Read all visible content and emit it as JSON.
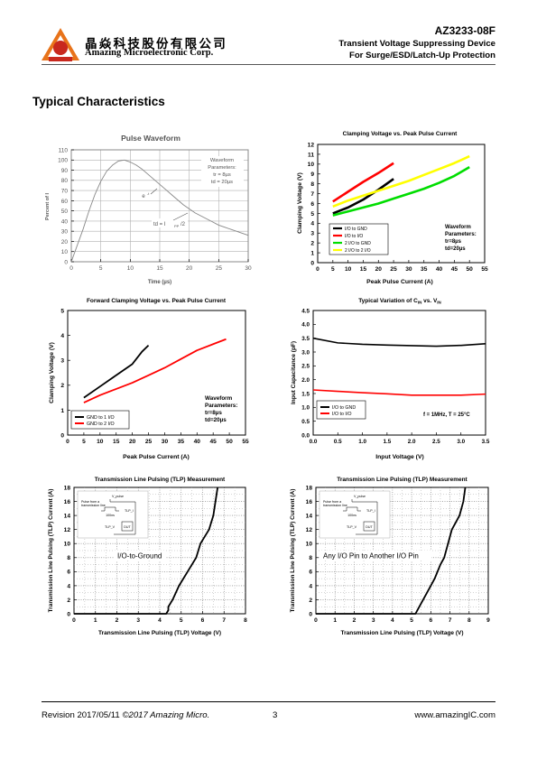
{
  "header": {
    "company_cn": "晶焱科技股份有限公司",
    "company_en": "Amazing Microelectronic Corp.",
    "part_number": "AZ3233-08F",
    "subtitle_1": "Transient  Voltage  Suppressing  Device",
    "subtitle_2": "For  Surge/ESD/Latch-Up  Protection"
  },
  "section_title": "Typical Characteristics",
  "footer": {
    "revision": "Revision 2017/05/11 ",
    "copyright": "©2017 Amazing Micro.",
    "page": "3",
    "url": "www.amazingIC.com"
  },
  "charts": {
    "pulse": {
      "title": "Pulse Waveform",
      "xlabel": "Time (µs)",
      "ylabel": "Percent of I",
      "ylabel_sub": "PP",
      "xticks": [
        "0",
        "5",
        "10",
        "15",
        "20",
        "25",
        "30"
      ],
      "yticks": [
        "0",
        "10",
        "20",
        "30",
        "40",
        "50",
        "60",
        "70",
        "80",
        "90",
        "100",
        "110"
      ],
      "note_1": "Waveform",
      "note_2": "Parameters:",
      "note_3": "tr = 8µs",
      "note_4": "td = 20µs",
      "e_label": "e",
      "e_sup": "-t",
      "td_label": "td = I",
      "td_sub": "PP",
      "td_suffix": "/2"
    },
    "clamp": {
      "title": "Clamping Voltage vs. Peak Pulse Current",
      "xlabel": "Peak Pulse Current (A)",
      "ylabel": "Clamping Voltage (V)",
      "xticks": [
        "0",
        "5",
        "10",
        "15",
        "20",
        "25",
        "30",
        "35",
        "40",
        "45",
        "50",
        "55"
      ],
      "yticks": [
        "0",
        "1",
        "2",
        "3",
        "4",
        "5",
        "6",
        "7",
        "8",
        "9",
        "10",
        "11",
        "12"
      ],
      "legend": [
        "I/O to GND",
        "I/O to I/O",
        "2 I/O to GND",
        "2 I/O to 2 I/O"
      ],
      "note_1": "Waveform",
      "note_2": "Parameters:",
      "note_3": "tr=8µs",
      "note_4": "td=20µs"
    },
    "fwd": {
      "title": "Forward Clamping Voltage vs. Peak Pulse Current",
      "xlabel": "Peak Pulse Current (A)",
      "ylabel": "Clamping Voltage (V)",
      "xticks": [
        "0",
        "5",
        "10",
        "15",
        "20",
        "25",
        "30",
        "35",
        "40",
        "45",
        "50",
        "55"
      ],
      "yticks": [
        "0",
        "1",
        "2",
        "3",
        "4",
        "5"
      ],
      "legend": [
        "GND to 1 I/O",
        "GND to 2 I/O"
      ],
      "note_1": "Waveform",
      "note_2": "Parameters:",
      "note_3": "tr=8µs",
      "note_4": "td=20µs"
    },
    "cap": {
      "title_main": "Typical Variation of C",
      "title_sub1": "IN",
      "title_mid": " vs. V",
      "title_sub2": "IN",
      "xlabel": "Input Voltage (V)",
      "ylabel": "Input Capacitance (pF)",
      "xticks": [
        "0.0",
        "0.5",
        "1.0",
        "1.5",
        "2.0",
        "2.5",
        "3.0",
        "3.5"
      ],
      "yticks": [
        "0.0",
        "0.5",
        "1.0",
        "1.5",
        "2.0",
        "2.5",
        "3.0",
        "3.5",
        "4.0",
        "4.5"
      ],
      "legend": [
        "I/O to GND",
        "I/O to I/O"
      ],
      "note": "f = 1MHz, T = 25°C"
    },
    "tlp1": {
      "title": "Transmission Line Pulsing (TLP) Measurement",
      "xlabel": "Transmission Line Pulsing (TLP) Voltage (V)",
      "ylabel": "Transmission Line Pulsing (TLP) Current (A)",
      "xticks": [
        "0",
        "1",
        "2",
        "3",
        "4",
        "5",
        "6",
        "7",
        "8"
      ],
      "yticks": [
        "0",
        "2",
        "4",
        "6",
        "8",
        "10",
        "12",
        "14",
        "16",
        "18"
      ],
      "label": "I/O-to-Ground",
      "inset_pulse": "Pulse from a",
      "inset_tl": "transmission line",
      "inset_vpulse": "V_pulse",
      "inset_100ns": "100ns",
      "inset_tlp_i": "TLP_I",
      "inset_tlp_v": "TLP_V",
      "inset_dut": "DUT"
    },
    "tlp2": {
      "title": "Transmission Line Pulsing (TLP) Measurement",
      "xlabel": "Transmission Line Pulsing (TLP) Voltage (V)",
      "ylabel": "Transmission Line Pulsing (TLP) Current (A)",
      "xticks": [
        "0",
        "1",
        "2",
        "3",
        "4",
        "5",
        "6",
        "7",
        "8",
        "9"
      ],
      "yticks": [
        "0",
        "2",
        "4",
        "6",
        "8",
        "10",
        "12",
        "14",
        "16",
        "18"
      ],
      "label": "Any I/O Pin to Another I/O Pin",
      "inset_pulse": "Pulse from a",
      "inset_tl": "transmission line",
      "inset_vpulse": "V_pulse",
      "inset_100ns": "100ns",
      "inset_tlp_i": "TLP_I",
      "inset_tlp_v": "TLP_V",
      "inset_dut": "DUT"
    }
  },
  "chart_data": [
    {
      "type": "line",
      "title": "Pulse Waveform",
      "xlabel": "Time (µs)",
      "ylabel": "Percent of IPP",
      "xlim": [
        0,
        30
      ],
      "ylim": [
        0,
        110
      ],
      "series": [
        {
          "x": [
            0,
            1,
            2,
            3,
            4,
            5,
            6,
            7,
            8,
            9,
            10,
            11,
            12,
            13,
            14,
            15,
            16,
            17,
            18,
            19,
            20,
            21,
            22,
            23,
            24,
            25,
            26,
            27,
            28,
            29,
            30
          ],
          "values": [
            0,
            16,
            32,
            50,
            66,
            79,
            89,
            95,
            99,
            100,
            98,
            95,
            91,
            86,
            81,
            76,
            71,
            66,
            61,
            56,
            52,
            48,
            45,
            42,
            39,
            36,
            34,
            32,
            30,
            28,
            26
          ]
        }
      ],
      "color": "#888888"
    },
    {
      "type": "line",
      "title": "Clamping Voltage vs. Peak Pulse Current",
      "xlabel": "Peak Pulse Current (A)",
      "ylabel": "Clamping Voltage (V)",
      "xlim": [
        0,
        55
      ],
      "ylim": [
        0,
        12
      ],
      "series": [
        {
          "name": "I/O to GND",
          "color": "#000000",
          "x": [
            5,
            10,
            15,
            20,
            25
          ],
          "values": [
            5.0,
            5.6,
            6.4,
            7.4,
            8.5
          ]
        },
        {
          "name": "I/O to I/O",
          "color": "#ff0000",
          "x": [
            5,
            10,
            15,
            20,
            25
          ],
          "values": [
            6.2,
            7.2,
            8.2,
            9.1,
            10.1
          ]
        },
        {
          "name": "2 I/O to GND",
          "color": "#00dd00",
          "x": [
            5,
            10,
            15,
            20,
            25,
            30,
            35,
            40,
            45,
            50
          ],
          "values": [
            4.8,
            5.2,
            5.6,
            6.0,
            6.5,
            7.0,
            7.5,
            8.1,
            8.8,
            9.7
          ]
        },
        {
          "name": "2 I/O to 2 I/O",
          "color": "#ffff00",
          "x": [
            5,
            10,
            15,
            20,
            25,
            30,
            35,
            40,
            45,
            50
          ],
          "values": [
            5.7,
            6.3,
            6.8,
            7.3,
            7.8,
            8.3,
            8.9,
            9.5,
            10.1,
            10.8
          ]
        }
      ]
    },
    {
      "type": "line",
      "title": "Forward Clamping Voltage vs. Peak Pulse Current",
      "xlabel": "Peak Pulse Current (A)",
      "ylabel": "Clamping Voltage (V)",
      "xlim": [
        0,
        55
      ],
      "ylim": [
        0,
        5
      ],
      "series": [
        {
          "name": "GND to 1 I/O",
          "color": "#000000",
          "x": [
            5,
            10,
            15,
            20,
            23,
            25
          ],
          "values": [
            1.5,
            1.95,
            2.4,
            2.85,
            3.35,
            3.6
          ]
        },
        {
          "name": "GND to 2 I/O",
          "color": "#ff0000",
          "x": [
            5,
            10,
            15,
            20,
            25,
            30,
            35,
            40,
            45,
            49
          ],
          "values": [
            1.3,
            1.6,
            1.85,
            2.1,
            2.4,
            2.7,
            3.05,
            3.4,
            3.65,
            3.85
          ]
        }
      ]
    },
    {
      "type": "line",
      "title": "Typical Variation of CIN vs. VIN",
      "xlabel": "Input Voltage (V)",
      "ylabel": "Input Capacitance (pF)",
      "xlim": [
        0,
        3.5
      ],
      "ylim": [
        0,
        4.5
      ],
      "series": [
        {
          "name": "I/O to GND",
          "color": "#000000",
          "x": [
            0,
            0.5,
            1.0,
            1.5,
            2.0,
            2.5,
            3.0,
            3.5
          ],
          "values": [
            3.5,
            3.33,
            3.28,
            3.25,
            3.23,
            3.21,
            3.24,
            3.3
          ]
        },
        {
          "name": "I/O to I/O",
          "color": "#ff0000",
          "x": [
            0,
            0.5,
            1.0,
            1.5,
            2.0,
            2.5,
            3.0,
            3.5
          ],
          "values": [
            1.63,
            1.58,
            1.53,
            1.49,
            1.44,
            1.44,
            1.44,
            1.48
          ]
        }
      ]
    },
    {
      "type": "line",
      "title": "Transmission Line Pulsing (TLP) Measurement",
      "xlabel": "Transmission Line Pulsing (TLP) Voltage (V)",
      "ylabel": "Transmission Line Pulsing (TLP) Current (A)",
      "xlim": [
        0,
        8
      ],
      "ylim": [
        0,
        18
      ],
      "series": [
        {
          "name": "I/O-to-Ground",
          "color": "#000000",
          "x": [
            0,
            4.3,
            4.4,
            4.4,
            4.6,
            4.9,
            5.1,
            5.3,
            5.5,
            5.7,
            5.9,
            6.1,
            6.3,
            6.5,
            6.6,
            6.7
          ],
          "values": [
            0,
            0,
            0.5,
            1,
            2,
            4,
            5,
            6,
            7,
            8,
            10,
            11,
            12,
            14,
            16,
            18
          ]
        }
      ]
    },
    {
      "type": "line",
      "title": "Transmission Line Pulsing (TLP) Measurement",
      "xlabel": "Transmission Line Pulsing (TLP) Voltage (V)",
      "ylabel": "Transmission Line Pulsing (TLP) Current (A)",
      "xlim": [
        0,
        9
      ],
      "ylim": [
        0,
        18
      ],
      "series": [
        {
          "name": "Any I/O Pin to Another I/O Pin",
          "color": "#000000",
          "x": [
            0,
            5.2,
            5.3,
            5.6,
            5.8,
            6.0,
            6.2,
            6.5,
            6.7,
            6.9,
            7.1,
            7.3,
            7.5,
            7.7,
            7.8
          ],
          "values": [
            0,
            0,
            0.5,
            2,
            3,
            4,
            5,
            7,
            8,
            10,
            12,
            13,
            14,
            16,
            18
          ]
        }
      ]
    }
  ]
}
